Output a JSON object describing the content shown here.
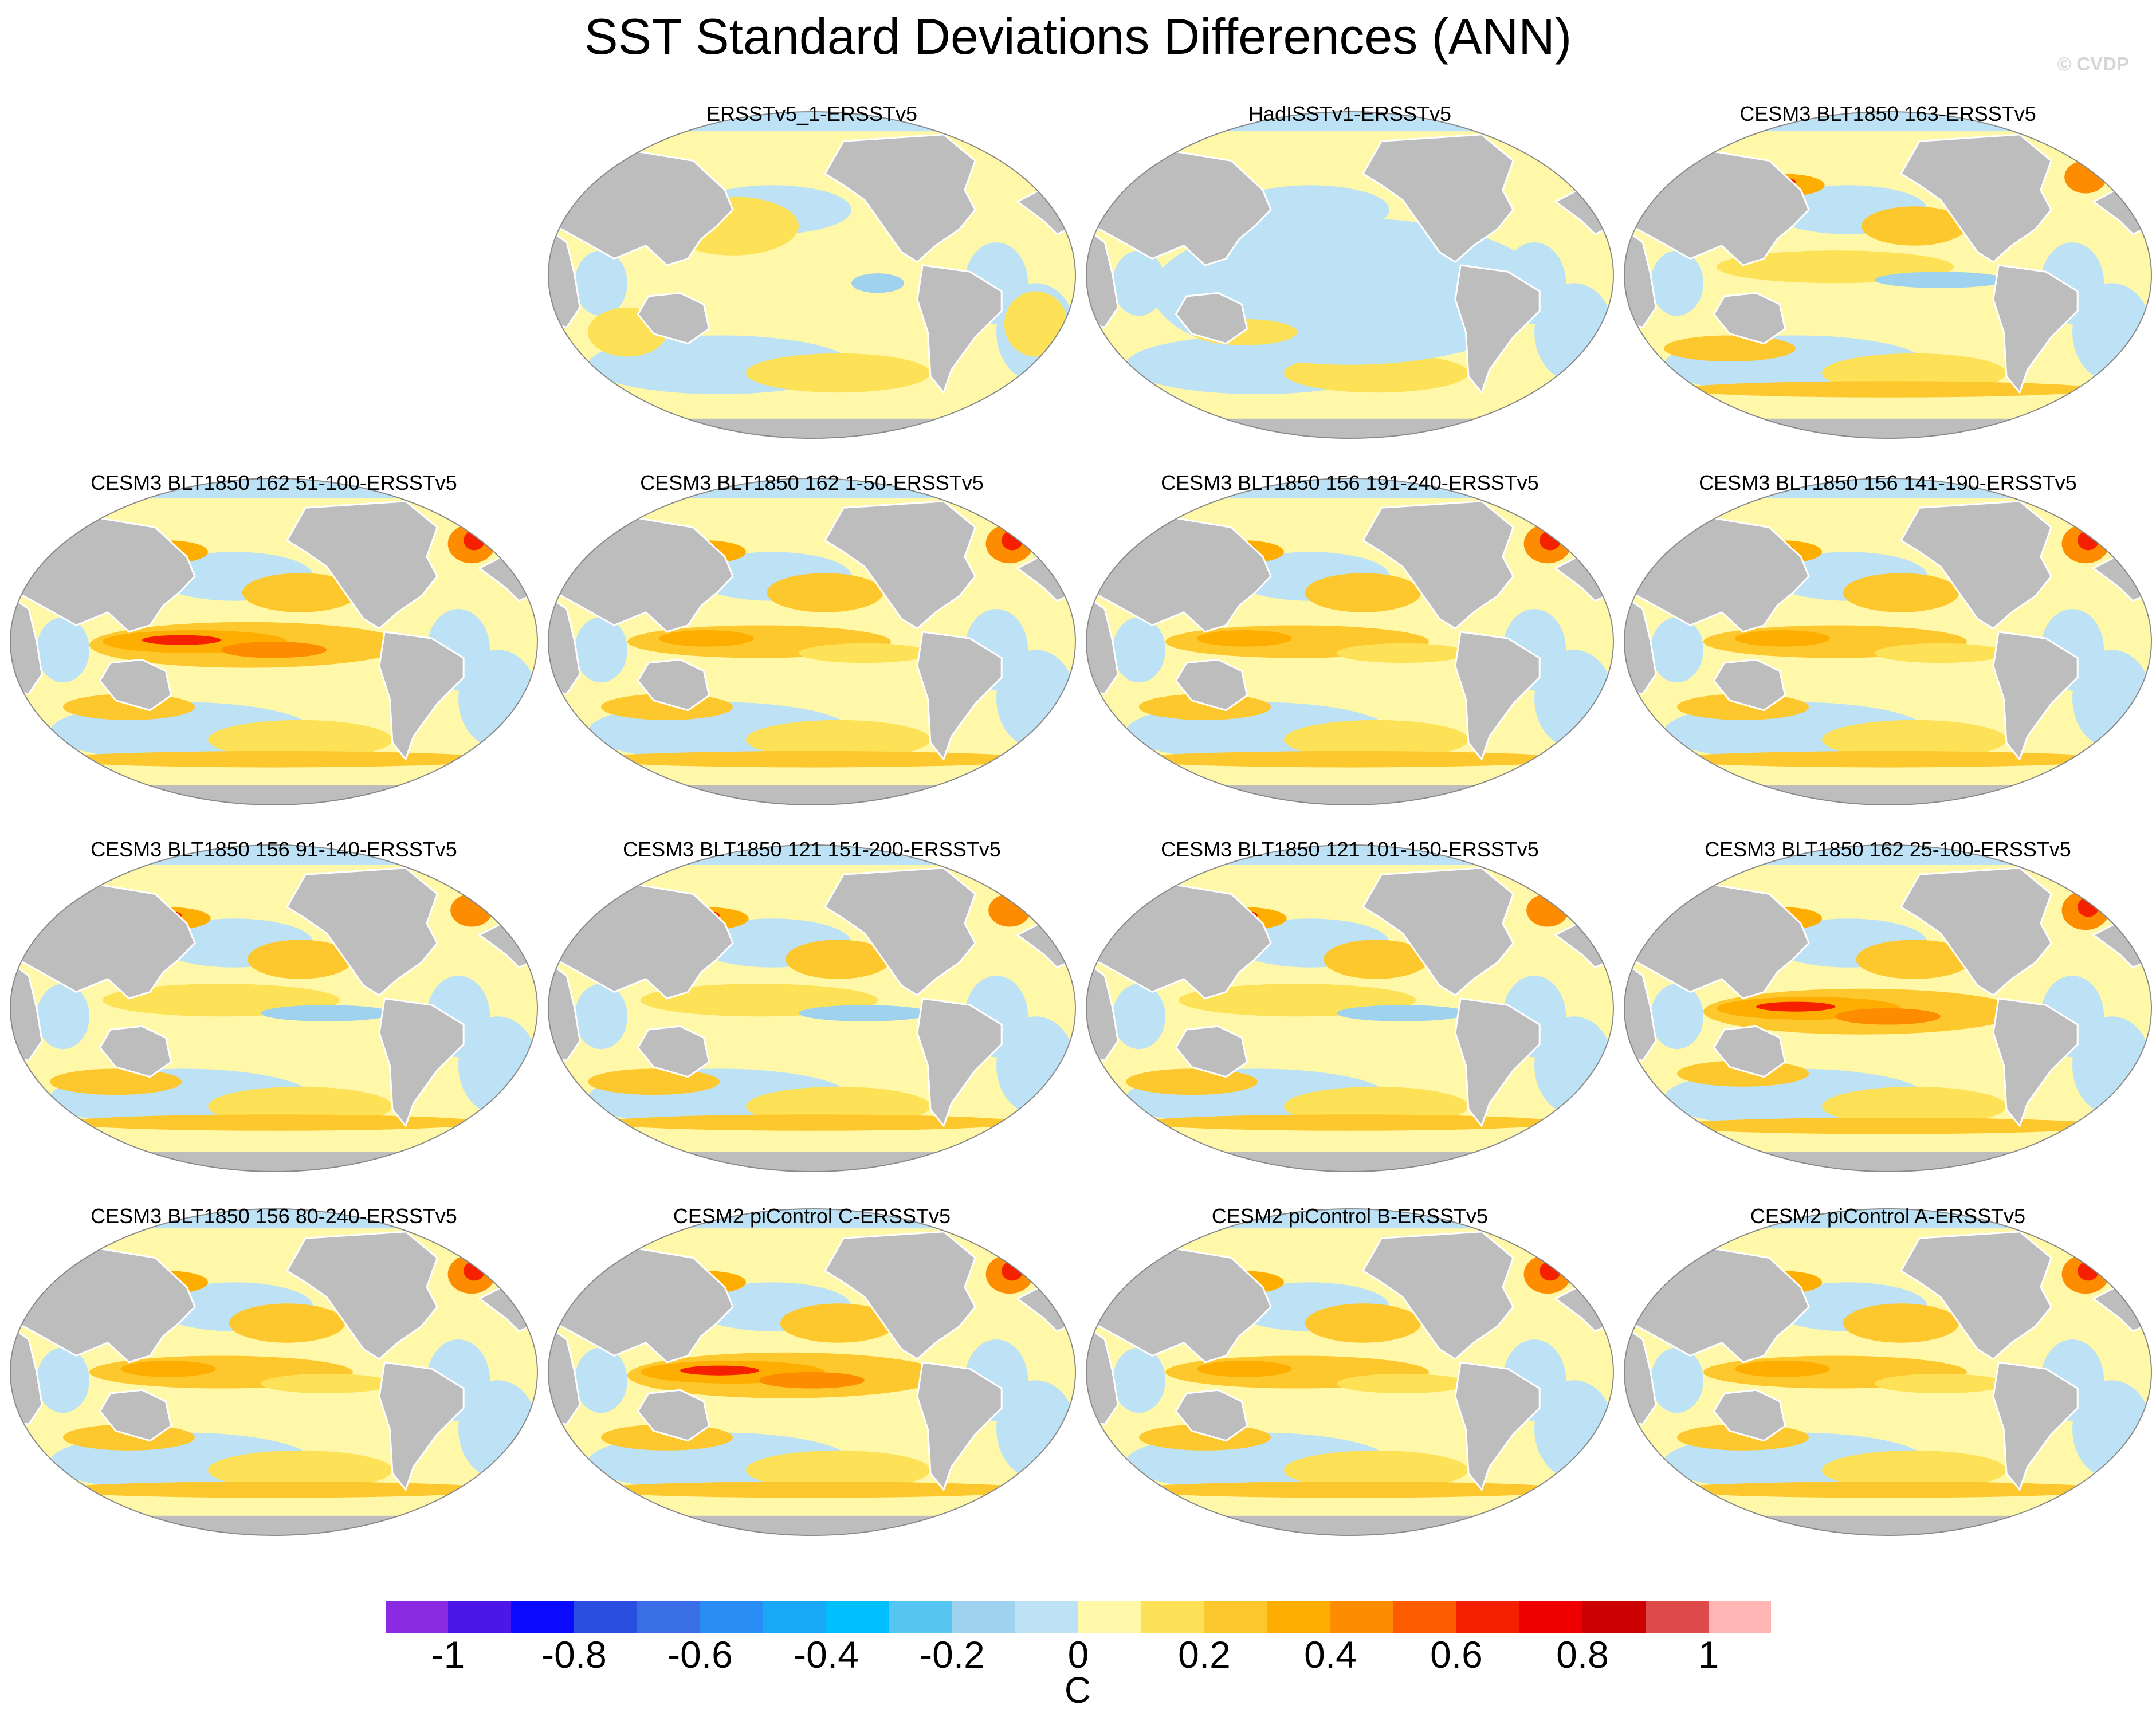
{
  "title": "SST Standard Deviations Differences (ANN)",
  "watermark": "© CVDP",
  "panels": [
    {
      "title": "ERSSTv5_1-ERSSTv5",
      "row": 0,
      "col": 1,
      "style": "obs"
    },
    {
      "title": "HadISSTv1-ERSSTv5",
      "row": 0,
      "col": 2,
      "style": "had"
    },
    {
      "title": "CESM3 BLT1850 163-ERSSTv5",
      "row": 0,
      "col": 3,
      "style": "model-low"
    },
    {
      "title": "CESM3 BLT1850 162 51-100-ERSSTv5",
      "row": 1,
      "col": 0,
      "style": "model-high"
    },
    {
      "title": "CESM3 BLT1850 162 1-50-ERSSTv5",
      "row": 1,
      "col": 1,
      "style": "model-mid"
    },
    {
      "title": "CESM3 BLT1850 156 191-240-ERSSTv5",
      "row": 1,
      "col": 2,
      "style": "model-mid"
    },
    {
      "title": "CESM3 BLT1850 156 141-190-ERSSTv5",
      "row": 1,
      "col": 3,
      "style": "model-mid"
    },
    {
      "title": "CESM3 BLT1850 156 91-140-ERSSTv5",
      "row": 2,
      "col": 0,
      "style": "model-low"
    },
    {
      "title": "CESM3 BLT1850 121 151-200-ERSSTv5",
      "row": 2,
      "col": 1,
      "style": "model-low"
    },
    {
      "title": "CESM3 BLT1850 121 101-150-ERSSTv5",
      "row": 2,
      "col": 2,
      "style": "model-low"
    },
    {
      "title": "CESM3 BLT1850 162 25-100-ERSSTv5",
      "row": 2,
      "col": 3,
      "style": "model-high"
    },
    {
      "title": "CESM3 BLT1850 156 80-240-ERSSTv5",
      "row": 3,
      "col": 0,
      "style": "model-mid"
    },
    {
      "title": "CESM2 piControl C-ERSSTv5",
      "row": 3,
      "col": 1,
      "style": "model-high"
    },
    {
      "title": "CESM2 piControl B-ERSSTv5",
      "row": 3,
      "col": 2,
      "style": "model-mid"
    },
    {
      "title": "CESM2 piControl A-ERSSTv5",
      "row": 3,
      "col": 3,
      "style": "model-mid"
    }
  ],
  "colorbar": {
    "colors": [
      "#8a2be2",
      "#4b16e8",
      "#0a0aff",
      "#2a4ee0",
      "#3a6ee6",
      "#2a8cf5",
      "#19a8f6",
      "#00bfff",
      "#56c5f2",
      "#9ed2ee",
      "#bde2f6",
      "#fff8a8",
      "#fde156",
      "#fdc72e",
      "#fdae00",
      "#fd8c00",
      "#fd5c00",
      "#f52000",
      "#ee0000",
      "#cc0000",
      "#de4a4a",
      "#ffb6b4"
    ],
    "labels": [
      "-1",
      "-0.8",
      "-0.6",
      "-0.4",
      "-0.2",
      "0",
      "0.2",
      "0.4",
      "0.6",
      "0.8",
      "1"
    ],
    "units": "C"
  },
  "palette": {
    "land": "#bdbdbd",
    "coast": "#ffffff",
    "ocean_zero": "#fff8a8",
    "light_blue": "#bde2f6",
    "mid_blue": "#9ed2ee",
    "yellow": "#fde156",
    "orange": "#fdc72e",
    "dark_orange": "#fdae00",
    "red_orange": "#fd8c00",
    "red": "#f52000",
    "dark_red": "#cc0000"
  }
}
